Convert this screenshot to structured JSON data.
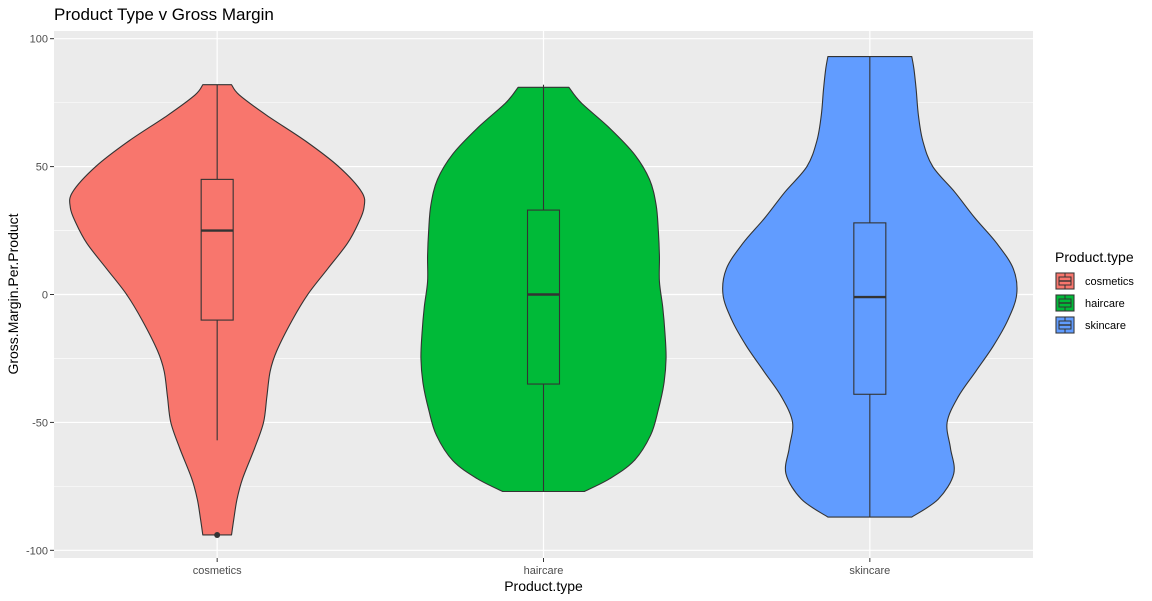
{
  "chart_data": {
    "type": "violin",
    "title": "Product Type v Gross Margin",
    "xlabel": "Product.type",
    "ylabel": "Gross.Margin.Per.Product",
    "ylim": [
      -103,
      103
    ],
    "y_ticks": [
      -100,
      -50,
      0,
      50,
      100
    ],
    "y_tick_labels": [
      "-100",
      "-50",
      "0",
      "50",
      "100"
    ],
    "categories": [
      "cosmetics",
      "haircare",
      "skincare"
    ],
    "grid": true,
    "legend": {
      "title": "Product.type",
      "position": "right",
      "items": [
        "cosmetics",
        "haircare",
        "skincare"
      ]
    },
    "series": [
      {
        "name": "cosmetics",
        "color": "#F8766D",
        "box": {
          "min": -57,
          "q1": -10,
          "median": 25,
          "q3": 45,
          "max": 82
        },
        "outliers": [
          -94
        ],
        "violin": [
          [
            -94,
            0.13
          ],
          [
            -88,
            0.15
          ],
          [
            -80,
            0.18
          ],
          [
            -72,
            0.23
          ],
          [
            -60,
            0.34
          ],
          [
            -50,
            0.42
          ],
          [
            -40,
            0.45
          ],
          [
            -30,
            0.48
          ],
          [
            -22,
            0.54
          ],
          [
            -10,
            0.68
          ],
          [
            0,
            0.82
          ],
          [
            10,
            1.0
          ],
          [
            20,
            1.18
          ],
          [
            28,
            1.28
          ],
          [
            34,
            1.33
          ],
          [
            40,
            1.31
          ],
          [
            50,
            1.1
          ],
          [
            60,
            0.8
          ],
          [
            70,
            0.45
          ],
          [
            78,
            0.2
          ],
          [
            82,
            0.13
          ]
        ]
      },
      {
        "name": "haircare",
        "color": "#00BA38",
        "box": {
          "min": -77,
          "q1": -35,
          "median": 0,
          "q3": 33,
          "max": 82
        },
        "outliers": [],
        "violin": [
          [
            -77,
            0.37
          ],
          [
            -72,
            0.6
          ],
          [
            -65,
            0.82
          ],
          [
            -55,
            0.97
          ],
          [
            -45,
            1.04
          ],
          [
            -35,
            1.09
          ],
          [
            -25,
            1.11
          ],
          [
            -15,
            1.1
          ],
          [
            -5,
            1.08
          ],
          [
            5,
            1.05
          ],
          [
            15,
            1.05
          ],
          [
            25,
            1.04
          ],
          [
            35,
            1.02
          ],
          [
            45,
            0.96
          ],
          [
            55,
            0.82
          ],
          [
            65,
            0.6
          ],
          [
            75,
            0.34
          ],
          [
            81,
            0.23
          ]
        ]
      },
      {
        "name": "skincare",
        "color": "#619CFF",
        "box": {
          "min": -87,
          "q1": -39,
          "median": -1,
          "q3": 28,
          "max": 93
        },
        "outliers": [],
        "violin": [
          [
            -87,
            0.38
          ],
          [
            -80,
            0.62
          ],
          [
            -70,
            0.76
          ],
          [
            -60,
            0.73
          ],
          [
            -50,
            0.7
          ],
          [
            -40,
            0.8
          ],
          [
            -30,
            0.96
          ],
          [
            -20,
            1.12
          ],
          [
            -10,
            1.25
          ],
          [
            0,
            1.33
          ],
          [
            10,
            1.3
          ],
          [
            20,
            1.15
          ],
          [
            30,
            0.95
          ],
          [
            40,
            0.77
          ],
          [
            50,
            0.57
          ],
          [
            60,
            0.48
          ],
          [
            70,
            0.44
          ],
          [
            80,
            0.42
          ],
          [
            88,
            0.4
          ],
          [
            93,
            0.38
          ]
        ]
      }
    ]
  }
}
